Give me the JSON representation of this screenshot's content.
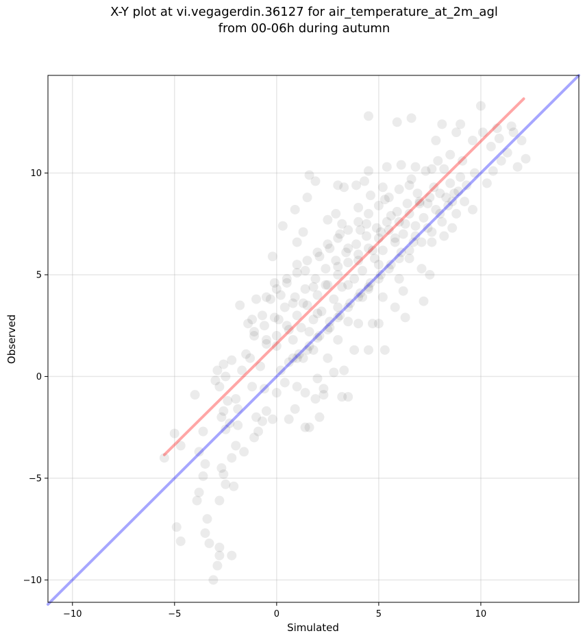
{
  "chart_data": {
    "type": "scatter",
    "title": "X-Y plot at vi.vegagerdin.36127 for air_temperature_at_2m_agl",
    "subtitle": "from 00-06h during autumn",
    "xlabel": "Simulated",
    "ylabel": "Observed",
    "xlim": [
      -11.2,
      14.8
    ],
    "ylim": [
      -11.1,
      14.8
    ],
    "xticks": [
      -10,
      -5,
      0,
      5,
      10
    ],
    "yticks": [
      -10,
      -5,
      0,
      5,
      10
    ],
    "xtick_labels": [
      "−10",
      "−5",
      "0",
      "5",
      "10"
    ],
    "ytick_labels": [
      "−10",
      "−5",
      "0",
      "5",
      "10"
    ],
    "grid": true,
    "point_color": "#000000",
    "point_opacity": 0.08,
    "series": [
      {
        "kind": "points",
        "points": [
          [
            -5.5,
            -4.0
          ],
          [
            -5.0,
            -2.8
          ],
          [
            -4.9,
            -7.4
          ],
          [
            -4.7,
            -8.1
          ],
          [
            -4.7,
            -3.4
          ],
          [
            -4.0,
            -0.9
          ],
          [
            -3.8,
            -3.7
          ],
          [
            -3.8,
            -5.7
          ],
          [
            -3.9,
            -6.1
          ],
          [
            -3.6,
            -4.9
          ],
          [
            -3.6,
            -2.7
          ],
          [
            -3.5,
            -4.3
          ],
          [
            -3.4,
            -7.0
          ],
          [
            -3.5,
            -7.7
          ],
          [
            -3.3,
            -8.2
          ],
          [
            -3.1,
            -10.0
          ],
          [
            -2.9,
            -9.3
          ],
          [
            -2.8,
            -8.4
          ],
          [
            -2.8,
            -8.8
          ],
          [
            -2.7,
            -4.5
          ],
          [
            -2.6,
            -4.8
          ],
          [
            -2.5,
            -5.3
          ],
          [
            -2.8,
            -6.1
          ],
          [
            -2.2,
            -8.8
          ],
          [
            -2.1,
            -5.4
          ],
          [
            -2.2,
            -4.0
          ],
          [
            -2.0,
            -3.4
          ],
          [
            -2.3,
            -2.3
          ],
          [
            -2.5,
            -2.6
          ],
          [
            -2.6,
            -1.7
          ],
          [
            -2.7,
            -2.0
          ],
          [
            -2.4,
            -1.2
          ],
          [
            -2.8,
            -0.5
          ],
          [
            -3.0,
            -0.2
          ],
          [
            -2.5,
            0.0
          ],
          [
            -2.2,
            0.8
          ],
          [
            -2.6,
            0.6
          ],
          [
            -2.9,
            0.3
          ],
          [
            -1.9,
            -1.6
          ],
          [
            -1.6,
            -3.7
          ],
          [
            -1.9,
            -2.4
          ],
          [
            -2.0,
            -1.1
          ],
          [
            -1.7,
            0.3
          ],
          [
            -1.5,
            1.1
          ],
          [
            -1.8,
            3.5
          ],
          [
            -1.4,
            2.6
          ],
          [
            -1.2,
            2.8
          ],
          [
            -1.0,
            3.8
          ],
          [
            -1.1,
            2.0
          ],
          [
            -1.3,
            0.9
          ],
          [
            -1.2,
            -0.5
          ],
          [
            -1.0,
            -2.0
          ],
          [
            -1.1,
            -3.0
          ],
          [
            -0.9,
            -2.7
          ],
          [
            -0.7,
            -2.2
          ],
          [
            -0.5,
            -1.7
          ],
          [
            -0.6,
            -0.6
          ],
          [
            -0.8,
            0.5
          ],
          [
            -0.5,
            1.6
          ],
          [
            -0.7,
            3.0
          ],
          [
            -0.3,
            3.8
          ],
          [
            -0.1,
            4.6
          ],
          [
            -0.2,
            5.9
          ],
          [
            0.3,
            7.4
          ],
          [
            0.2,
            4.0
          ],
          [
            0.1,
            2.8
          ],
          [
            0.0,
            1.5
          ],
          [
            0.2,
            0.3
          ],
          [
            0.0,
            -0.8
          ],
          [
            -0.2,
            -2.1
          ],
          [
            0.4,
            -0.3
          ],
          [
            0.6,
            -2.1
          ],
          [
            0.9,
            -1.6
          ],
          [
            1.0,
            -0.5
          ],
          [
            0.8,
            0.9
          ],
          [
            0.6,
            2.3
          ],
          [
            0.8,
            3.6
          ],
          [
            0.5,
            4.6
          ],
          [
            1.0,
            5.5
          ],
          [
            1.0,
            6.6
          ],
          [
            0.9,
            8.2
          ],
          [
            1.5,
            8.8
          ],
          [
            1.6,
            9.9
          ],
          [
            1.9,
            9.6
          ],
          [
            1.3,
            7.1
          ],
          [
            1.4,
            5.2
          ],
          [
            1.3,
            3.6
          ],
          [
            1.6,
            2.2
          ],
          [
            1.3,
            0.9
          ],
          [
            1.4,
            -0.8
          ],
          [
            1.4,
            -2.5
          ],
          [
            1.6,
            -2.5
          ],
          [
            1.9,
            -1.1
          ],
          [
            2.0,
            -0.1
          ],
          [
            1.8,
            1.3
          ],
          [
            2.0,
            3.1
          ],
          [
            1.8,
            4.4
          ],
          [
            2.1,
            5.9
          ],
          [
            2.5,
            7.7
          ],
          [
            2.6,
            6.3
          ],
          [
            2.4,
            4.5
          ],
          [
            2.6,
            2.7
          ],
          [
            2.5,
            0.9
          ],
          [
            2.3,
            -0.6
          ],
          [
            2.1,
            -2.0
          ],
          [
            2.3,
            -0.9
          ],
          [
            2.8,
            0.2
          ],
          [
            3.0,
            1.8
          ],
          [
            3.0,
            3.4
          ],
          [
            3.0,
            5.4
          ],
          [
            3.1,
            7.0
          ],
          [
            2.9,
            8.0
          ],
          [
            3.0,
            9.4
          ],
          [
            3.3,
            9.3
          ],
          [
            3.2,
            7.5
          ],
          [
            3.5,
            6.3
          ],
          [
            3.5,
            4.5
          ],
          [
            3.5,
            2.7
          ],
          [
            3.3,
            0.3
          ],
          [
            3.2,
            -1.0
          ],
          [
            3.5,
            -1.0
          ],
          [
            3.8,
            1.3
          ],
          [
            4.0,
            2.6
          ],
          [
            4.2,
            3.9
          ],
          [
            4.0,
            5.7
          ],
          [
            4.1,
            7.2
          ],
          [
            4.0,
            8.3
          ],
          [
            3.9,
            9.4
          ],
          [
            4.3,
            9.6
          ],
          [
            4.5,
            12.8
          ],
          [
            4.5,
            10.1
          ],
          [
            4.6,
            8.9
          ],
          [
            4.4,
            7.5
          ],
          [
            4.7,
            6.2
          ],
          [
            4.5,
            4.3
          ],
          [
            4.7,
            2.6
          ],
          [
            4.5,
            1.3
          ],
          [
            5.0,
            2.6
          ],
          [
            5.3,
            1.3
          ],
          [
            5.2,
            3.9
          ],
          [
            5.0,
            5.5
          ],
          [
            5.1,
            7.1
          ],
          [
            5.3,
            8.7
          ],
          [
            5.4,
            10.3
          ],
          [
            5.2,
            9.3
          ],
          [
            5.6,
            7.9
          ],
          [
            5.8,
            6.8
          ],
          [
            6.0,
            4.8
          ],
          [
            5.8,
            3.4
          ],
          [
            6.3,
            2.9
          ],
          [
            6.2,
            4.2
          ],
          [
            6.5,
            5.8
          ],
          [
            6.3,
            7.5
          ],
          [
            6.5,
            9.4
          ],
          [
            6.1,
            10.4
          ],
          [
            5.9,
            12.5
          ],
          [
            6.6,
            12.7
          ],
          [
            6.8,
            10.3
          ],
          [
            7.0,
            8.5
          ],
          [
            6.8,
            6.9
          ],
          [
            7.1,
            5.3
          ],
          [
            7.2,
            3.7
          ],
          [
            7.5,
            5.0
          ],
          [
            7.6,
            6.6
          ],
          [
            7.4,
            8.5
          ],
          [
            7.6,
            10.2
          ],
          [
            7.8,
            11.6
          ],
          [
            8.1,
            12.4
          ],
          [
            8.2,
            10.2
          ],
          [
            8.4,
            8.4
          ],
          [
            8.2,
            6.9
          ],
          [
            8.6,
            7.3
          ],
          [
            8.7,
            9.0
          ],
          [
            8.5,
            10.9
          ],
          [
            8.8,
            12.0
          ],
          [
            9.0,
            12.4
          ],
          [
            9.1,
            10.6
          ],
          [
            9.2,
            8.6
          ],
          [
            9.6,
            8.2
          ],
          [
            9.7,
            10.0
          ],
          [
            9.6,
            11.6
          ],
          [
            10.0,
            13.3
          ],
          [
            10.1,
            12.0
          ],
          [
            10.3,
            9.5
          ],
          [
            10.6,
            10.1
          ],
          [
            10.5,
            11.3
          ],
          [
            10.8,
            12.2
          ],
          [
            11.0,
            10.6
          ],
          [
            11.3,
            11.0
          ],
          [
            11.6,
            12.0
          ],
          [
            11.8,
            10.3
          ],
          [
            12.0,
            11.6
          ],
          [
            12.2,
            10.7
          ],
          [
            11.5,
            12.3
          ],
          [
            10.9,
            11.7
          ],
          [
            8.0,
            9.0
          ],
          [
            7.5,
            8.8
          ],
          [
            7.0,
            8.6
          ],
          [
            6.5,
            8.0
          ],
          [
            6.0,
            7.6
          ],
          [
            5.5,
            7.2
          ],
          [
            5.0,
            6.8
          ],
          [
            4.5,
            6.3
          ],
          [
            4.0,
            6.0
          ],
          [
            3.5,
            5.6
          ],
          [
            3.0,
            5.0
          ],
          [
            2.5,
            4.5
          ],
          [
            2.0,
            4.0
          ],
          [
            1.5,
            3.5
          ],
          [
            1.0,
            3.0
          ],
          [
            0.5,
            2.5
          ],
          [
            0.0,
            2.0
          ],
          [
            -0.5,
            1.8
          ],
          [
            8.5,
            9.5
          ],
          [
            9.0,
            9.8
          ],
          [
            7.8,
            8.2
          ],
          [
            7.2,
            7.8
          ],
          [
            6.8,
            7.4
          ],
          [
            6.2,
            7.0
          ],
          [
            5.8,
            6.6
          ],
          [
            5.2,
            6.2
          ],
          [
            4.8,
            5.8
          ],
          [
            4.2,
            5.2
          ],
          [
            3.8,
            4.8
          ],
          [
            3.2,
            4.4
          ],
          [
            2.8,
            3.8
          ],
          [
            2.2,
            3.2
          ],
          [
            1.8,
            2.8
          ],
          [
            1.2,
            2.4
          ],
          [
            0.8,
            1.8
          ],
          [
            8.3,
            8.8
          ],
          [
            7.7,
            9.3
          ],
          [
            6.9,
            9.0
          ],
          [
            6.4,
            8.5
          ],
          [
            5.9,
            8.1
          ],
          [
            5.4,
            7.6
          ],
          [
            4.9,
            7.3
          ],
          [
            4.4,
            6.9
          ],
          [
            3.9,
            6.5
          ],
          [
            3.4,
            6.1
          ],
          [
            2.9,
            5.7
          ],
          [
            2.4,
            5.3
          ],
          [
            1.9,
            4.8
          ],
          [
            1.4,
            4.3
          ],
          [
            0.9,
            3.9
          ],
          [
            0.4,
            3.4
          ],
          [
            -0.1,
            2.9
          ],
          [
            -0.6,
            2.5
          ],
          [
            -1.1,
            2.2
          ],
          [
            9.3,
            9.4
          ],
          [
            8.9,
            9.1
          ],
          [
            8.6,
            8.6
          ],
          [
            8.0,
            8.0
          ],
          [
            7.4,
            7.3
          ],
          [
            6.7,
            6.6
          ],
          [
            6.1,
            6.1
          ],
          [
            5.6,
            5.5
          ],
          [
            5.1,
            5.0
          ],
          [
            4.6,
            4.6
          ],
          [
            4.1,
            4.1
          ],
          [
            3.6,
            3.6
          ],
          [
            3.1,
            3.0
          ],
          [
            2.6,
            2.4
          ],
          [
            2.1,
            2.0
          ],
          [
            1.6,
            1.5
          ],
          [
            1.1,
            1.1
          ],
          [
            0.6,
            0.7
          ],
          [
            7.9,
            10.6
          ],
          [
            7.3,
            10.1
          ],
          [
            6.6,
            9.7
          ],
          [
            6.0,
            9.2
          ],
          [
            5.5,
            8.8
          ],
          [
            5.0,
            8.4
          ],
          [
            4.5,
            8.0
          ],
          [
            4.0,
            7.6
          ],
          [
            3.5,
            7.2
          ],
          [
            3.0,
            6.8
          ],
          [
            2.5,
            6.5
          ],
          [
            2.0,
            6.1
          ],
          [
            1.5,
            5.7
          ],
          [
            1.0,
            5.1
          ],
          [
            0.5,
            4.8
          ],
          [
            0.0,
            4.3
          ],
          [
            -0.5,
            3.9
          ],
          [
            8.8,
            8.0
          ],
          [
            8.1,
            7.6
          ],
          [
            7.6,
            7.1
          ],
          [
            7.1,
            6.6
          ],
          [
            6.5,
            6.2
          ],
          [
            6.0,
            5.8
          ],
          [
            5.5,
            5.3
          ],
          [
            5.0,
            4.8
          ],
          [
            4.5,
            4.4
          ],
          [
            4.0,
            3.9
          ],
          [
            3.5,
            3.4
          ],
          [
            3.0,
            2.9
          ],
          [
            2.5,
            2.3
          ],
          [
            2.0,
            1.9
          ],
          [
            1.5,
            1.3
          ],
          [
            1.0,
            0.9
          ]
        ]
      },
      {
        "kind": "line",
        "color": "#ff0000",
        "opacity": 0.35,
        "points": [
          [
            -5.5,
            -3.85
          ],
          [
            12.1,
            13.65
          ]
        ]
      },
      {
        "kind": "line",
        "color": "#0000ff",
        "opacity": 0.35,
        "points": [
          [
            -11.2,
            -11.2
          ],
          [
            14.8,
            14.8
          ]
        ]
      }
    ]
  }
}
